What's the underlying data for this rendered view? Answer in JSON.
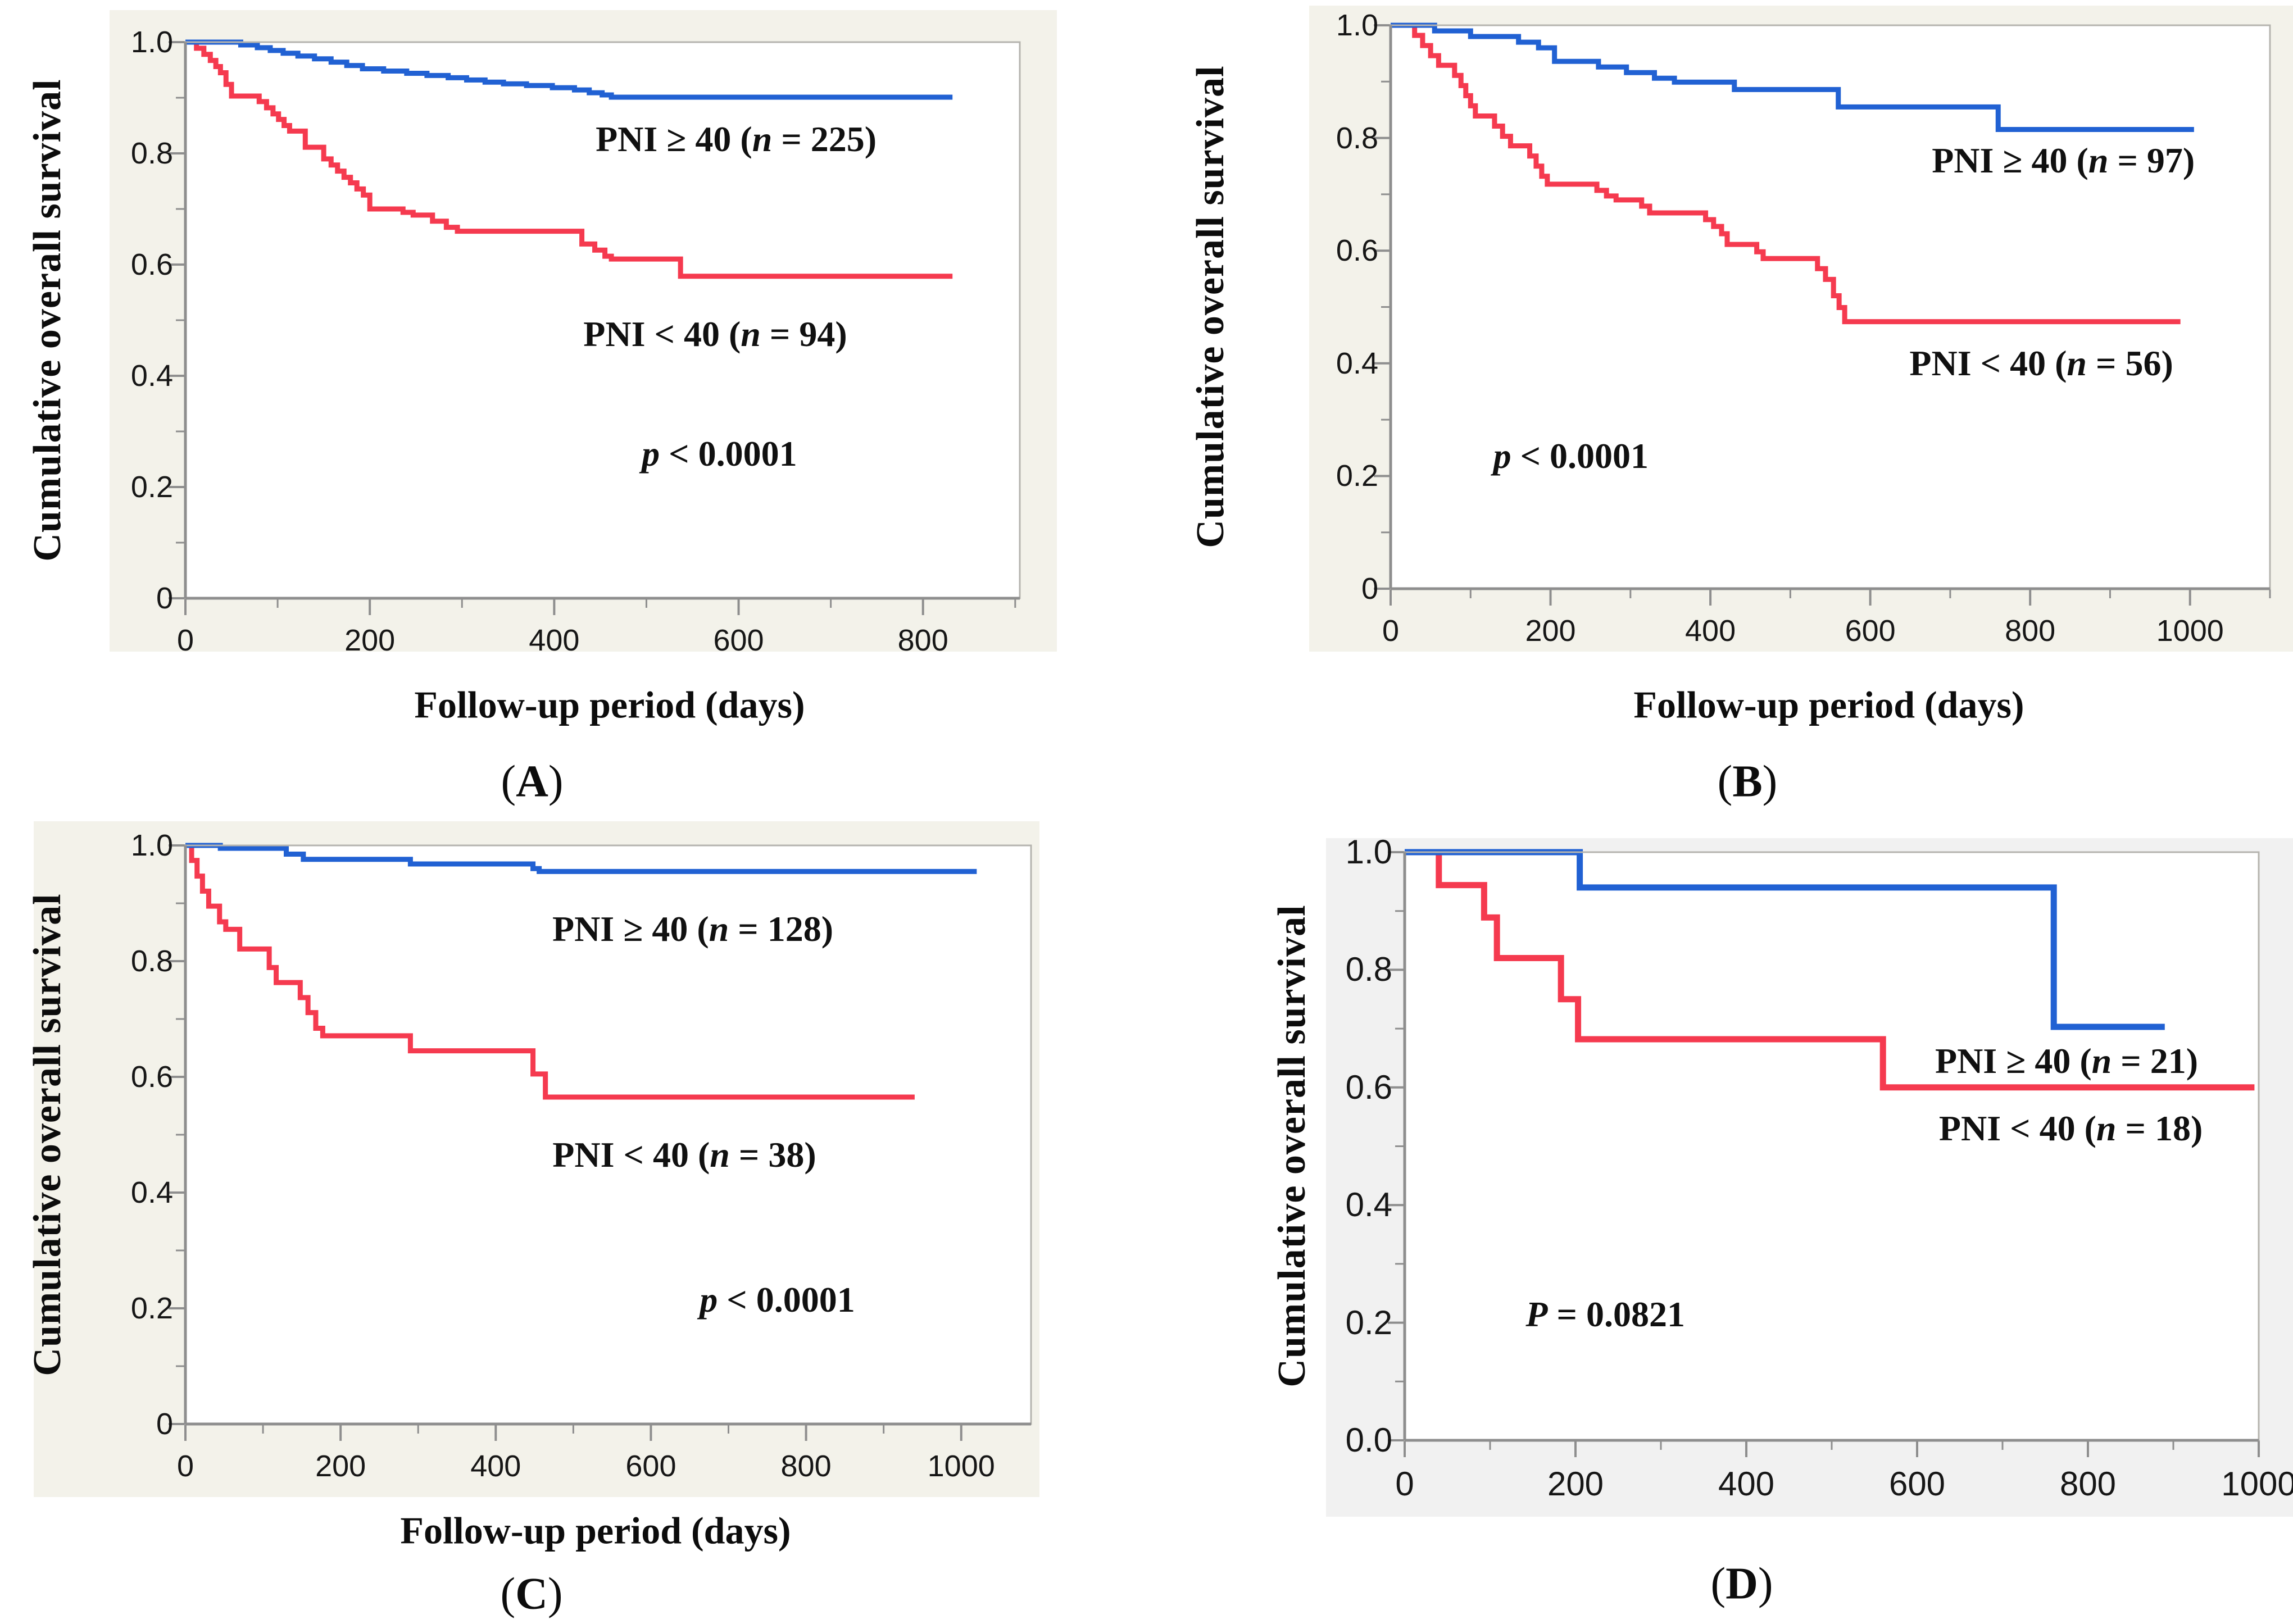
{
  "figure": {
    "y_axis_title": "Cumulative overall survival",
    "x_axis_title": "Follow-up period (days)",
    "colors": {
      "blue": "#2161d3",
      "red": "#f53a4f",
      "axis": "#8e8e8e",
      "frame": "#b5b4af",
      "text": "#161616",
      "panel_bg_warm": "#f3f2ea",
      "panel_bg_gray": "#f1f1f1",
      "plot_bg": "#ffffff"
    }
  },
  "chart_data": [
    {
      "type": "line",
      "subtype": "kaplan-meier-step",
      "panel_letter": "A",
      "letter_parts": {
        "open": "(",
        "char": "A",
        "close": ")"
      },
      "title": "",
      "xlabel": "Follow-up period (days)",
      "ylabel": "Cumulative overall survival",
      "show_xlabel": true,
      "panel_bg": "warm",
      "xlim": [
        0,
        905
      ],
      "ylim": [
        0,
        1
      ],
      "xticks": [
        0,
        200,
        400,
        600,
        800
      ],
      "xtick_labels": [
        "0",
        "200",
        "400",
        "600",
        "800"
      ],
      "x_minor_step": 100,
      "yticks": [
        1.0,
        0.8,
        0.6,
        0.4,
        0.2,
        0
      ],
      "ytick_labels": [
        "1.0",
        "0.8",
        "0.6",
        "0.4",
        "0.2",
        "0"
      ],
      "y_minor_step": 0.1,
      "grid": false,
      "legend_position": "inside-right",
      "series": [
        {
          "name": "PNI ≥ 40 (n = 225)",
          "group": "PNI ≥ 40",
          "n": 225,
          "color_key": "blue",
          "label_parts": {
            "pre": "PNI ≥ 40 (",
            "n": "n",
            "post": " = 225)"
          },
          "legend_pos": {
            "x_frac": 0.66,
            "y_value": 0.825
          },
          "steps": [
            [
              0,
              1.0
            ],
            [
              60,
              0.995
            ],
            [
              78,
              0.99
            ],
            [
              92,
              0.985
            ],
            [
              106,
              0.98
            ],
            [
              122,
              0.975
            ],
            [
              140,
              0.97
            ],
            [
              158,
              0.964
            ],
            [
              175,
              0.958
            ],
            [
              192,
              0.952
            ],
            [
              215,
              0.948
            ],
            [
              240,
              0.944
            ],
            [
              262,
              0.94
            ],
            [
              285,
              0.936
            ],
            [
              305,
              0.932
            ],
            [
              325,
              0.928
            ],
            [
              345,
              0.925
            ],
            [
              370,
              0.922
            ],
            [
              398,
              0.918
            ],
            [
              422,
              0.914
            ],
            [
              438,
              0.909
            ],
            [
              452,
              0.905
            ],
            [
              462,
              0.901
            ],
            [
              832,
              0.901
            ]
          ]
        },
        {
          "name": "PNI < 40 (n = 94)",
          "group": "PNI < 40",
          "n": 94,
          "color_key": "red",
          "label_parts": {
            "pre": "PNI < 40 (",
            "n": "n",
            "post": " = 94)"
          },
          "legend_pos": {
            "x_frac": 0.635,
            "y_value": 0.475
          },
          "steps": [
            [
              0,
              1.0
            ],
            [
              12,
              0.989
            ],
            [
              20,
              0.978
            ],
            [
              27,
              0.967
            ],
            [
              33,
              0.956
            ],
            [
              38,
              0.945
            ],
            [
              44,
              0.924
            ],
            [
              50,
              0.903
            ],
            [
              80,
              0.893
            ],
            [
              88,
              0.882
            ],
            [
              95,
              0.871
            ],
            [
              101,
              0.861
            ],
            [
              107,
              0.85
            ],
            [
              113,
              0.84
            ],
            [
              130,
              0.811
            ],
            [
              150,
              0.79
            ],
            [
              158,
              0.779
            ],
            [
              165,
              0.768
            ],
            [
              172,
              0.757
            ],
            [
              179,
              0.747
            ],
            [
              186,
              0.736
            ],
            [
              193,
              0.725
            ],
            [
              200,
              0.7
            ],
            [
              236,
              0.694
            ],
            [
              247,
              0.689
            ],
            [
              268,
              0.678
            ],
            [
              283,
              0.667
            ],
            [
              295,
              0.66
            ],
            [
              430,
              0.637
            ],
            [
              444,
              0.626
            ],
            [
              455,
              0.615
            ],
            [
              462,
              0.61
            ],
            [
              537,
              0.579
            ],
            [
              832,
              0.579
            ]
          ]
        }
      ],
      "p_label": {
        "symbol": "p",
        "rest": " < 0.0001",
        "x_frac": 0.64,
        "y_value": 0.26
      }
    },
    {
      "type": "line",
      "subtype": "kaplan-meier-step",
      "panel_letter": "B",
      "letter_parts": {
        "open": "(",
        "char": "B",
        "close": ")"
      },
      "title": "",
      "xlabel": "Follow-up period (days)",
      "ylabel": "Cumulative overall survival",
      "show_xlabel": true,
      "panel_bg": "warm",
      "xlim": [
        0,
        1100
      ],
      "ylim": [
        0,
        1
      ],
      "xticks": [
        0,
        200,
        400,
        600,
        800,
        1000
      ],
      "xtick_labels": [
        "0",
        "200",
        "400",
        "600",
        "800",
        "1000"
      ],
      "x_minor_step": 100,
      "yticks": [
        1.0,
        0.8,
        0.6,
        0.4,
        0.2,
        0
      ],
      "ytick_labels": [
        "1.0",
        "0.8",
        "0.6",
        "0.4",
        "0.2",
        "0"
      ],
      "y_minor_step": 0.1,
      "grid": false,
      "legend_position": "inside-right",
      "series": [
        {
          "name": "PNI ≥ 40 (n = 97)",
          "group": "PNI ≥ 40",
          "n": 97,
          "color_key": "blue",
          "label_parts": {
            "pre": "PNI ≥ 40 (",
            "n": "n",
            "post": " = 97)"
          },
          "legend_pos": {
            "x_frac": 0.765,
            "y_value": 0.76
          },
          "steps": [
            [
              0,
              1.0
            ],
            [
              55,
              0.99
            ],
            [
              100,
              0.98
            ],
            [
              160,
              0.97
            ],
            [
              185,
              0.96
            ],
            [
              205,
              0.936
            ],
            [
              260,
              0.926
            ],
            [
              295,
              0.916
            ],
            [
              330,
              0.906
            ],
            [
              355,
              0.899
            ],
            [
              430,
              0.886
            ],
            [
              560,
              0.855
            ],
            [
              760,
              0.815
            ],
            [
              1005,
              0.815
            ]
          ]
        },
        {
          "name": "PNI < 40 (n = 56)",
          "group": "PNI < 40",
          "n": 56,
          "color_key": "red",
          "label_parts": {
            "pre": "PNI < 40 (",
            "n": "n",
            "post": " = 56)"
          },
          "legend_pos": {
            "x_frac": 0.74,
            "y_value": 0.4
          },
          "steps": [
            [
              0,
              1.0
            ],
            [
              30,
              0.982
            ],
            [
              40,
              0.964
            ],
            [
              50,
              0.946
            ],
            [
              60,
              0.929
            ],
            [
              80,
              0.911
            ],
            [
              88,
              0.893
            ],
            [
              94,
              0.875
            ],
            [
              100,
              0.857
            ],
            [
              106,
              0.839
            ],
            [
              130,
              0.821
            ],
            [
              140,
              0.803
            ],
            [
              150,
              0.786
            ],
            [
              174,
              0.768
            ],
            [
              182,
              0.75
            ],
            [
              189,
              0.732
            ],
            [
              196,
              0.718
            ],
            [
              258,
              0.707
            ],
            [
              270,
              0.697
            ],
            [
              282,
              0.69
            ],
            [
              314,
              0.679
            ],
            [
              324,
              0.667
            ],
            [
              394,
              0.655
            ],
            [
              404,
              0.643
            ],
            [
              414,
              0.63
            ],
            [
              421,
              0.611
            ],
            [
              458,
              0.598
            ],
            [
              466,
              0.586
            ],
            [
              534,
              0.568
            ],
            [
              544,
              0.549
            ],
            [
              554,
              0.52
            ],
            [
              561,
              0.499
            ],
            [
              568,
              0.474
            ],
            [
              988,
              0.474
            ]
          ]
        }
      ],
      "p_label": {
        "symbol": "p",
        "rest": " < 0.0001",
        "x_frac": 0.205,
        "y_value": 0.235
      }
    },
    {
      "type": "line",
      "subtype": "kaplan-meier-step",
      "panel_letter": "C",
      "letter_parts": {
        "open": "(",
        "char": "C",
        "close": ")"
      },
      "title": "",
      "xlabel": "Follow-up period (days)",
      "ylabel": "Cumulative overall survival",
      "show_xlabel": true,
      "panel_bg": "warm",
      "xlim": [
        0,
        1090
      ],
      "ylim": [
        0,
        1
      ],
      "xticks": [
        0,
        200,
        400,
        600,
        800,
        1000
      ],
      "xtick_labels": [
        "0",
        "200",
        "400",
        "600",
        "800",
        "1000"
      ],
      "x_minor_step": 100,
      "yticks": [
        1.0,
        0.8,
        0.6,
        0.4,
        0.2,
        0
      ],
      "ytick_labels": [
        "1.0",
        "0.8",
        "0.6",
        "0.4",
        "0.2",
        "0"
      ],
      "y_minor_step": 0.1,
      "grid": false,
      "legend_position": "inside-right",
      "series": [
        {
          "name": "PNI ≥ 40 (n = 128)",
          "group": "PNI ≥ 40",
          "n": 128,
          "color_key": "blue",
          "label_parts": {
            "pre": "PNI ≥ 40 (",
            "n": "n",
            "post": " = 128)"
          },
          "legend_pos": {
            "x_frac": 0.6,
            "y_value": 0.855
          },
          "steps": [
            [
              0,
              1.0
            ],
            [
              45,
              0.995
            ],
            [
              130,
              0.985
            ],
            [
              152,
              0.976
            ],
            [
              290,
              0.968
            ],
            [
              448,
              0.96
            ],
            [
              456,
              0.955
            ],
            [
              1020,
              0.955
            ]
          ]
        },
        {
          "name": "PNI < 40 (n = 38)",
          "group": "PNI < 40",
          "n": 38,
          "color_key": "red",
          "label_parts": {
            "pre": "PNI < 40 (",
            "n": "n",
            "post": " = 38)"
          },
          "legend_pos": {
            "x_frac": 0.59,
            "y_value": 0.465
          },
          "steps": [
            [
              0,
              1.0
            ],
            [
              8,
              0.974
            ],
            [
              15,
              0.947
            ],
            [
              22,
              0.921
            ],
            [
              30,
              0.895
            ],
            [
              44,
              0.868
            ],
            [
              52,
              0.855
            ],
            [
              70,
              0.821
            ],
            [
              108,
              0.789
            ],
            [
              117,
              0.763
            ],
            [
              148,
              0.737
            ],
            [
              158,
              0.711
            ],
            [
              168,
              0.684
            ],
            [
              177,
              0.671
            ],
            [
              290,
              0.645
            ],
            [
              448,
              0.605
            ],
            [
              464,
              0.565
            ],
            [
              940,
              0.565
            ]
          ]
        }
      ],
      "p_label": {
        "symbol": "p",
        "rest": " < 0.0001",
        "x_frac": 0.7,
        "y_value": 0.215
      }
    },
    {
      "type": "line",
      "subtype": "kaplan-meier-step",
      "panel_letter": "D",
      "letter_parts": {
        "open": "(",
        "char": "D",
        "close": ")"
      },
      "title": "",
      "xlabel": "",
      "ylabel": "Cumulative overall survival",
      "show_xlabel": false,
      "panel_bg": "gray",
      "xlim": [
        0,
        1000
      ],
      "ylim": [
        0,
        1
      ],
      "xticks": [
        0,
        200,
        400,
        600,
        800,
        1000
      ],
      "xtick_labels": [
        "0",
        "200",
        "400",
        "600",
        "800",
        "1000"
      ],
      "x_minor_step": 100,
      "yticks": [
        1.0,
        0.8,
        0.6,
        0.4,
        0.2,
        0
      ],
      "ytick_labels": [
        "1.0",
        "0.8",
        "0.6",
        "0.4",
        "0.2",
        "0.0"
      ],
      "y_minor_step": 0.1,
      "grid": false,
      "legend_position": "inside-right",
      "series": [
        {
          "name": "PNI ≥ 40 (n = 21)",
          "group": "PNI ≥ 40",
          "n": 21,
          "color_key": "blue",
          "label_parts": {
            "pre": "PNI ≥ 40 (",
            "n": "n",
            "post": " = 21)"
          },
          "legend_pos": {
            "x_frac": 0.775,
            "y_value": 0.645
          },
          "steps": [
            [
              0,
              1.0
            ],
            [
              205,
              0.94
            ],
            [
              760,
              0.703
            ],
            [
              890,
              0.703
            ]
          ]
        },
        {
          "name": "PNI < 40 (n = 18)",
          "group": "PNI < 40",
          "n": 18,
          "color_key": "red",
          "label_parts": {
            "pre": "PNI < 40 (",
            "n": "n",
            "post": " = 18)"
          },
          "legend_pos": {
            "x_frac": 0.78,
            "y_value": 0.53
          },
          "steps": [
            [
              0,
              1.0
            ],
            [
              40,
              0.944
            ],
            [
              93,
              0.889
            ],
            [
              108,
              0.82
            ],
            [
              183,
              0.75
            ],
            [
              203,
              0.682
            ],
            [
              560,
              0.6
            ],
            [
              995,
              0.6
            ]
          ]
        }
      ],
      "p_label": {
        "symbol": "P",
        "rest": " = 0.0821",
        "x_frac": 0.235,
        "y_value": 0.214
      }
    }
  ]
}
